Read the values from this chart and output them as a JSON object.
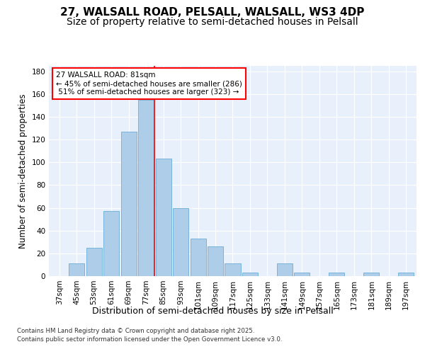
{
  "title_line1": "27, WALSALL ROAD, PELSALL, WALSALL, WS3 4DP",
  "title_line2": "Size of property relative to semi-detached houses in Pelsall",
  "xlabel": "Distribution of semi-detached houses by size in Pelsall",
  "ylabel": "Number of semi-detached properties",
  "categories": [
    "37sqm",
    "45sqm",
    "53sqm",
    "61sqm",
    "69sqm",
    "77sqm",
    "85sqm",
    "93sqm",
    "101sqm",
    "109sqm",
    "117sqm",
    "125sqm",
    "133sqm",
    "141sqm",
    "149sqm",
    "157sqm",
    "165sqm",
    "173sqm",
    "181sqm",
    "189sqm",
    "197sqm"
  ],
  "bar_values": [
    0,
    11,
    25,
    57,
    127,
    155,
    103,
    60,
    33,
    26,
    11,
    3,
    0,
    11,
    3,
    0,
    3,
    0,
    3,
    0,
    3
  ],
  "bar_color": "#aecde8",
  "bar_edge_color": "#6aaed6",
  "vline_color": "red",
  "vline_x": 5.5,
  "annotation_text": "27 WALSALL ROAD: 81sqm\n← 45% of semi-detached houses are smaller (286)\n 51% of semi-detached houses are larger (323) →",
  "ylim": [
    0,
    185
  ],
  "yticks": [
    0,
    20,
    40,
    60,
    80,
    100,
    120,
    140,
    160,
    180
  ],
  "background_color": "#e8f0fb",
  "footer_line1": "Contains HM Land Registry data © Crown copyright and database right 2025.",
  "footer_line2": "Contains public sector information licensed under the Open Government Licence v3.0.",
  "title_fontsize": 11,
  "subtitle_fontsize": 10,
  "tick_fontsize": 7.5,
  "ylabel_fontsize": 8.5,
  "xlabel_fontsize": 9
}
